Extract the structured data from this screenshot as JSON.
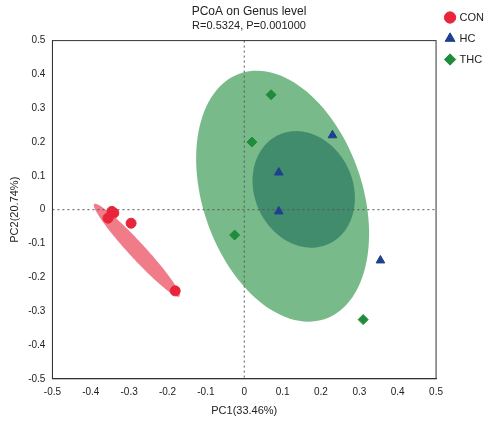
{
  "chart_data": {
    "type": "scatter",
    "title": "PCoA on Genus level",
    "subtitle": "R=0.5324, P=0.001000",
    "x_label": "PC1(33.46%)",
    "y_label": "PC2(20.74%)",
    "xlim": [
      -0.5,
      0.5
    ],
    "xticks": [
      -0.5,
      -0.4,
      -0.3,
      -0.2,
      -0.1,
      0,
      0.1,
      0.2,
      0.3,
      0.4,
      0.5
    ],
    "ylim": [
      -0.5,
      0.5
    ],
    "yticks": [
      -0.5,
      -0.4,
      -0.3,
      -0.2,
      -0.1,
      0,
      0.1,
      0.2,
      0.3,
      0.4,
      0.5
    ],
    "grid": false,
    "legend": "right",
    "reference_lines": {
      "x": 0,
      "y": 0
    },
    "series": [
      {
        "name": "CON",
        "color": "#e8253a",
        "marker": "circle",
        "x": [
          -0.345,
          -0.34,
          -0.355,
          -0.295,
          -0.18
        ],
        "y": [
          -0.005,
          -0.01,
          -0.025,
          -0.04,
          -0.24
        ],
        "ellipse": {
          "cx": -0.28,
          "cy": -0.12,
          "rx": 0.176,
          "ry": 0.022,
          "angle": -51
        }
      },
      {
        "name": "HC",
        "color": "#1f3f8f",
        "marker": "triangle",
        "x": [
          0.23,
          0.09,
          0.09,
          0.355
        ],
        "y": [
          0.22,
          0.11,
          -0.005,
          -0.15
        ],
        "ellipse": {
          "cx": 0.155,
          "cy": 0.06,
          "rx": 0.13,
          "ry": 0.175,
          "angle": 15
        }
      },
      {
        "name": "THC",
        "color": "#1e8c3a",
        "marker": "diamond",
        "x": [
          0.07,
          0.02,
          -0.025,
          0.31
        ],
        "y": [
          0.34,
          0.2,
          -0.075,
          -0.325
        ],
        "ellipse": {
          "cx": 0.1,
          "cy": 0.04,
          "rx": 0.21,
          "ry": 0.38,
          "angle": 15
        }
      }
    ]
  }
}
